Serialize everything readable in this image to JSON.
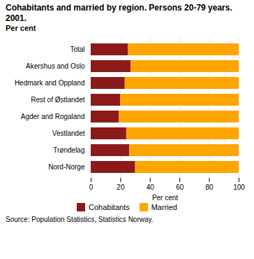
{
  "chart_data": {
    "type": "bar",
    "title": "Cohabitants and married by region. Persons 20-79 years. 2001.",
    "subtitle": "Per cent",
    "x_label": "Per cent",
    "annotations": [
      "Source: Population Statistics, Statistics Norway."
    ],
    "categories": [
      "Total",
      "Akershus and Oslo",
      "Hedmark and Oppland",
      "Rest of Østlandet",
      "Agder and Rogaland",
      "Vestlandet",
      "Trøndelag",
      "Nord-Norge"
    ],
    "series": [
      {
        "name": "Cohabitants",
        "color": "#8B1A1A",
        "values": [
          25,
          27,
          23,
          20,
          19,
          24,
          26,
          30
        ]
      },
      {
        "name": "Married",
        "color": "#FFA500",
        "values": [
          75,
          73,
          77,
          80,
          81,
          76,
          74,
          70
        ]
      }
    ],
    "orientation": "horizontal",
    "stacked": true,
    "xlim": [
      0,
      100
    ],
    "xticks": [
      0,
      20,
      40,
      60,
      80,
      100
    ],
    "grid": true,
    "legend": "bottom"
  }
}
